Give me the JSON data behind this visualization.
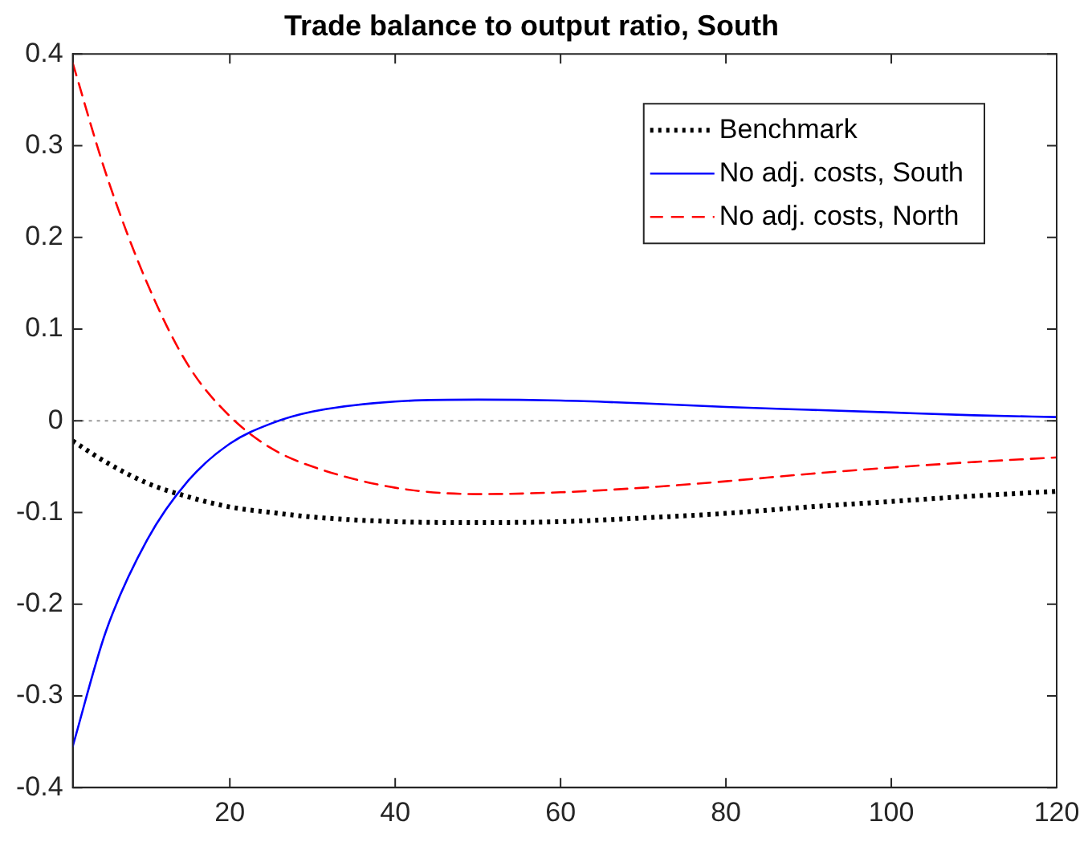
{
  "chart_data": {
    "type": "line",
    "title": "Trade balance to output ratio, South",
    "x": [
      1,
      5,
      10,
      15,
      20,
      25,
      30,
      40,
      50,
      60,
      70,
      80,
      90,
      100,
      110,
      120
    ],
    "xlim": [
      1,
      120
    ],
    "xticks": [
      20,
      40,
      60,
      80,
      100,
      120
    ],
    "ylim": [
      -0.4,
      0.4
    ],
    "yticks": [
      -0.4,
      -0.3,
      -0.2,
      -0.1,
      0,
      0.1,
      0.2,
      0.3,
      0.4
    ],
    "grid": false,
    "legend": "top right",
    "marker": "none",
    "ref_lines": [
      {
        "axis": "y",
        "value": 0,
        "color": "#999999",
        "line_style": "dotted"
      }
    ],
    "series": [
      {
        "name": "Benchmark",
        "color": "#000000",
        "line_style": "dotted",
        "values": [
          -0.022,
          -0.045,
          -0.068,
          -0.083,
          -0.094,
          -0.1,
          -0.105,
          -0.11,
          -0.111,
          -0.11,
          -0.106,
          -0.101,
          -0.094,
          -0.088,
          -0.082,
          -0.077
        ]
      },
      {
        "name": "No adj. costs, South",
        "color": "#0000ff",
        "line_style": "solid",
        "values": [
          -0.355,
          -0.23,
          -0.13,
          -0.065,
          -0.025,
          -0.003,
          0.01,
          0.021,
          0.023,
          0.022,
          0.019,
          0.015,
          0.012,
          0.009,
          0.006,
          0.004
        ]
      },
      {
        "name": "No adj. costs, North",
        "color": "#ff0000",
        "line_style": "dashed",
        "values": [
          0.39,
          0.27,
          0.15,
          0.06,
          0.005,
          -0.03,
          -0.05,
          -0.073,
          -0.08,
          -0.078,
          -0.073,
          -0.066,
          -0.058,
          -0.051,
          -0.045,
          -0.04
        ]
      }
    ]
  }
}
